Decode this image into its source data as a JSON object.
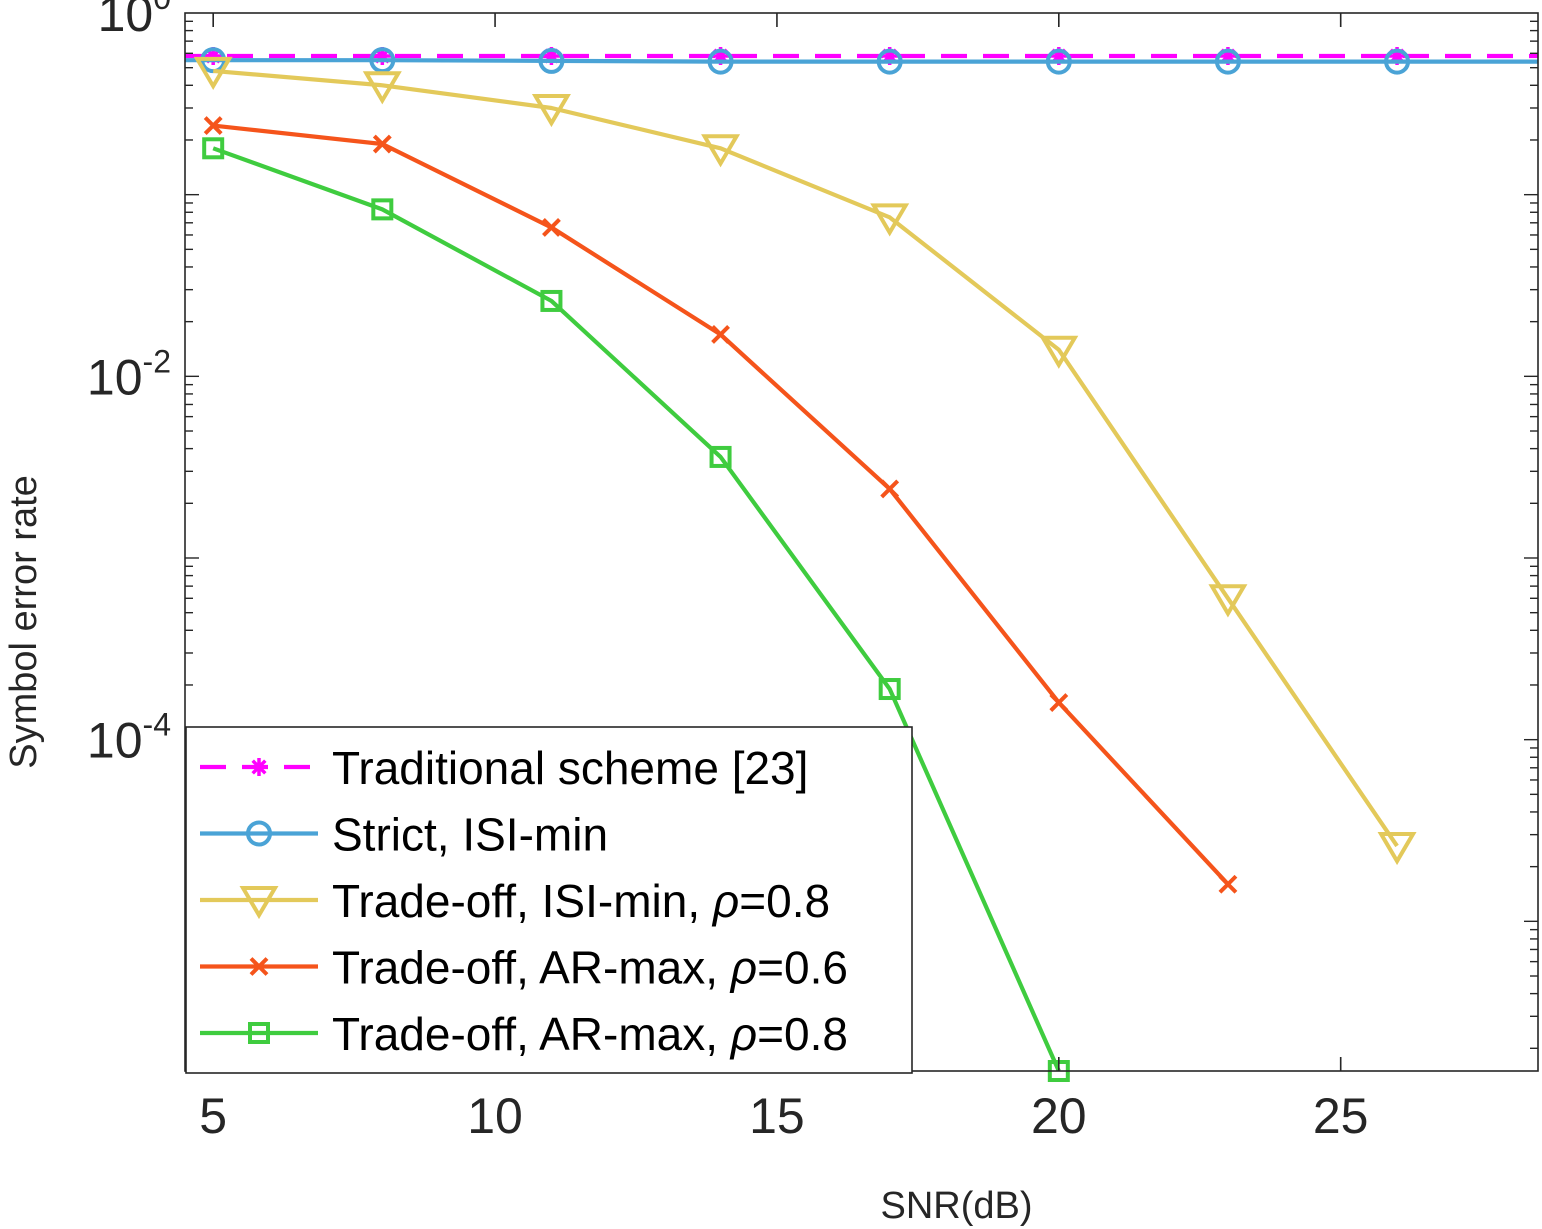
{
  "chart_data": {
    "type": "line",
    "xlabel": "SNR(dB)",
    "ylabel": "Symbol error rate",
    "x_scale": "linear",
    "y_scale": "log",
    "xlim": [
      4.5,
      28.5
    ],
    "ylim": [
      1.5e-06,
      1
    ],
    "xticks": [
      {
        "value": 5,
        "label": "5"
      },
      {
        "value": 10,
        "label": "10"
      },
      {
        "value": 15,
        "label": "15"
      },
      {
        "value": 20,
        "label": "20"
      },
      {
        "value": 25,
        "label": "25"
      }
    ],
    "yticks": [
      {
        "value": 1,
        "base": "10",
        "exp": "0"
      },
      {
        "value": 0.01,
        "base": "10",
        "exp": "-2"
      },
      {
        "value": 0.0001,
        "base": "10",
        "exp": "-4"
      }
    ],
    "grid": false,
    "legend_position": "bottom-left",
    "series": [
      {
        "name": "Traditional scheme [23]",
        "name_parts": [
          "Traditional scheme [23]"
        ],
        "color": "#ff00ff",
        "line_style": "dashed",
        "marker": "asterisk",
        "x": [
          5,
          8,
          11,
          14,
          17,
          20,
          23,
          26
        ],
        "y": [
          0.58,
          0.58,
          0.58,
          0.58,
          0.58,
          0.58,
          0.58,
          0.58
        ],
        "extends_to_axis_edge": true
      },
      {
        "name": "Strict, ISI-min",
        "name_parts": [
          "Strict, ISI-min"
        ],
        "color": "#4aa3d6",
        "line_style": "solid",
        "marker": "circle",
        "x": [
          5,
          8,
          11,
          14,
          17,
          20,
          23,
          26
        ],
        "y": [
          0.55,
          0.55,
          0.545,
          0.54,
          0.54,
          0.54,
          0.54,
          0.54
        ],
        "extends_to_axis_edge": true
      },
      {
        "name": "Trade-off, ISI-min, ρ=0.8",
        "name_parts": [
          "Trade-off, ISI-min, ",
          "ρ",
          "=0.8"
        ],
        "color": "#e3c95a",
        "line_style": "solid",
        "marker": "triangle-down",
        "x": [
          5,
          8,
          11,
          14,
          17,
          20,
          23,
          26
        ],
        "y": [
          0.48,
          0.4,
          0.3,
          0.18,
          0.075,
          0.014,
          0.0006,
          2.6e-05
        ]
      },
      {
        "name": "Trade-off, AR-max, ρ=0.6",
        "name_parts": [
          "Trade-off, AR-max, ",
          "ρ",
          "=0.6"
        ],
        "color": "#f5541b",
        "line_style": "solid",
        "marker": "x",
        "x": [
          5,
          8,
          11,
          14,
          17,
          20,
          23
        ],
        "y": [
          0.24,
          0.19,
          0.066,
          0.017,
          0.0024,
          0.00016,
          1.6e-05
        ]
      },
      {
        "name": "Trade-off, AR-max, ρ=0.8",
        "name_parts": [
          "Trade-off, AR-max, ",
          "ρ",
          "=0.8"
        ],
        "color": "#3fcc3f",
        "line_style": "solid",
        "marker": "square",
        "x": [
          5,
          8,
          11,
          14,
          17,
          20
        ],
        "y": [
          0.18,
          0.083,
          0.026,
          0.0036,
          0.00019,
          1.5e-06
        ]
      }
    ]
  }
}
